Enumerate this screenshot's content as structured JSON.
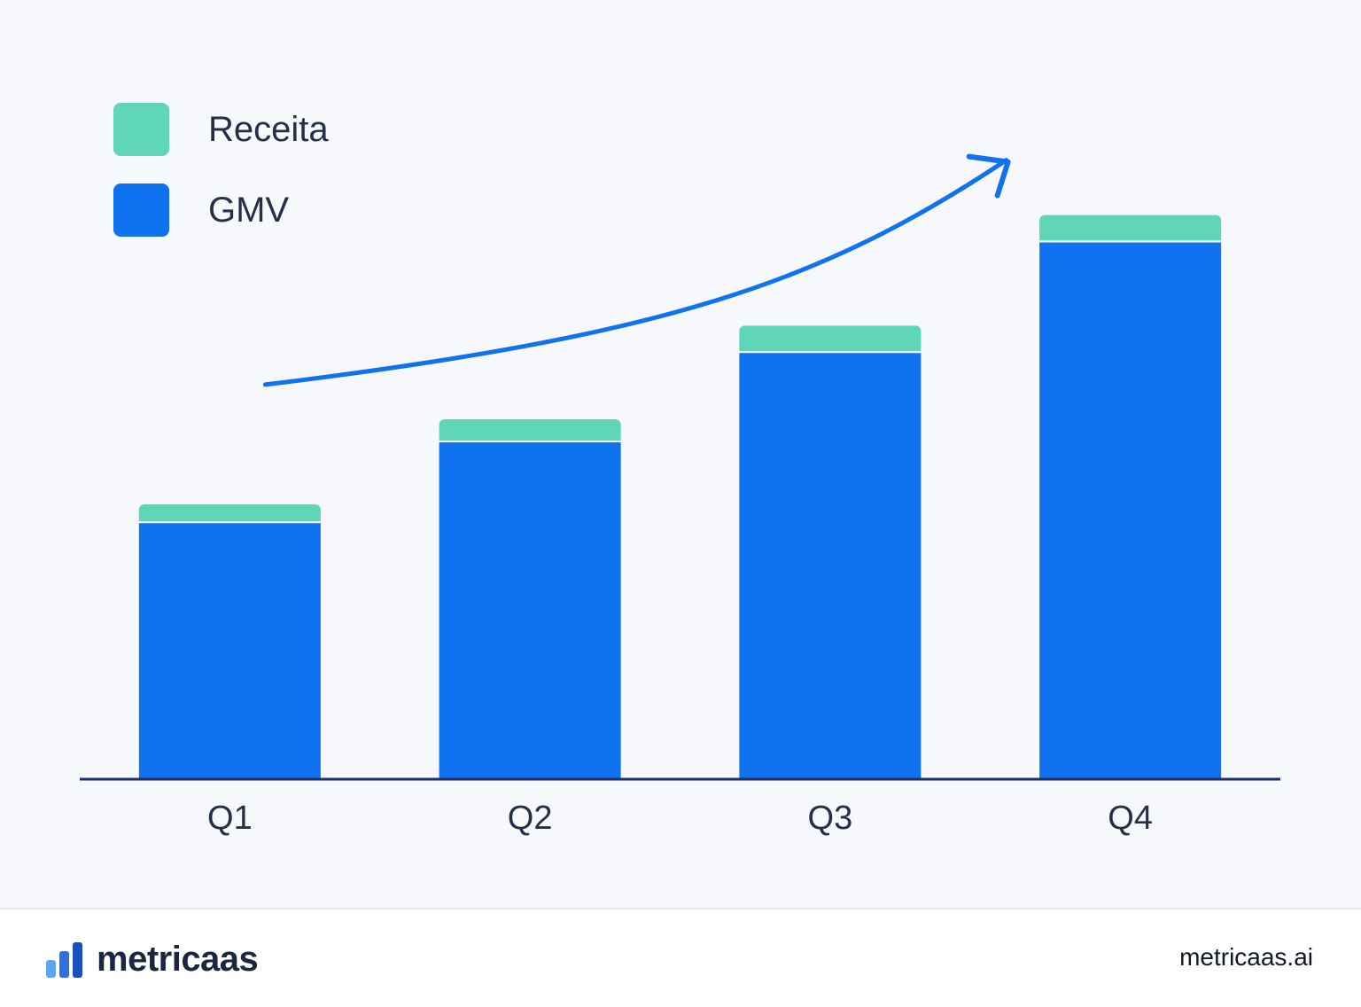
{
  "chart_data": {
    "type": "bar",
    "stacked": true,
    "categories": [
      "Q1",
      "Q2",
      "Q3",
      "Q4"
    ],
    "series": [
      {
        "name": "GMV",
        "color": "#0f72ef",
        "values": [
          60,
          79,
          100,
          126
        ]
      },
      {
        "name": "Receita",
        "color": "#5fd6b8",
        "values": [
          4,
          5,
          6,
          6
        ]
      }
    ],
    "ylim": [
      0,
      140
    ],
    "grid": false,
    "legend_position": "top-left",
    "trend_arrow": {
      "direction": "up",
      "color": "#0f72ef"
    },
    "axis_color": "#1a2f6e"
  },
  "legend": [
    {
      "label": "Receita",
      "color": "#5fd6b8"
    },
    {
      "label": "GMV",
      "color": "#0f72ef"
    }
  ],
  "footer": {
    "brand_name": "metricaas",
    "brand_colors": [
      "#5aa6f5",
      "#2f6fe0",
      "#1b4fc0"
    ],
    "brand_levels": [
      0.5,
      0.75,
      1.0
    ],
    "url": "metricaas.ai"
  }
}
